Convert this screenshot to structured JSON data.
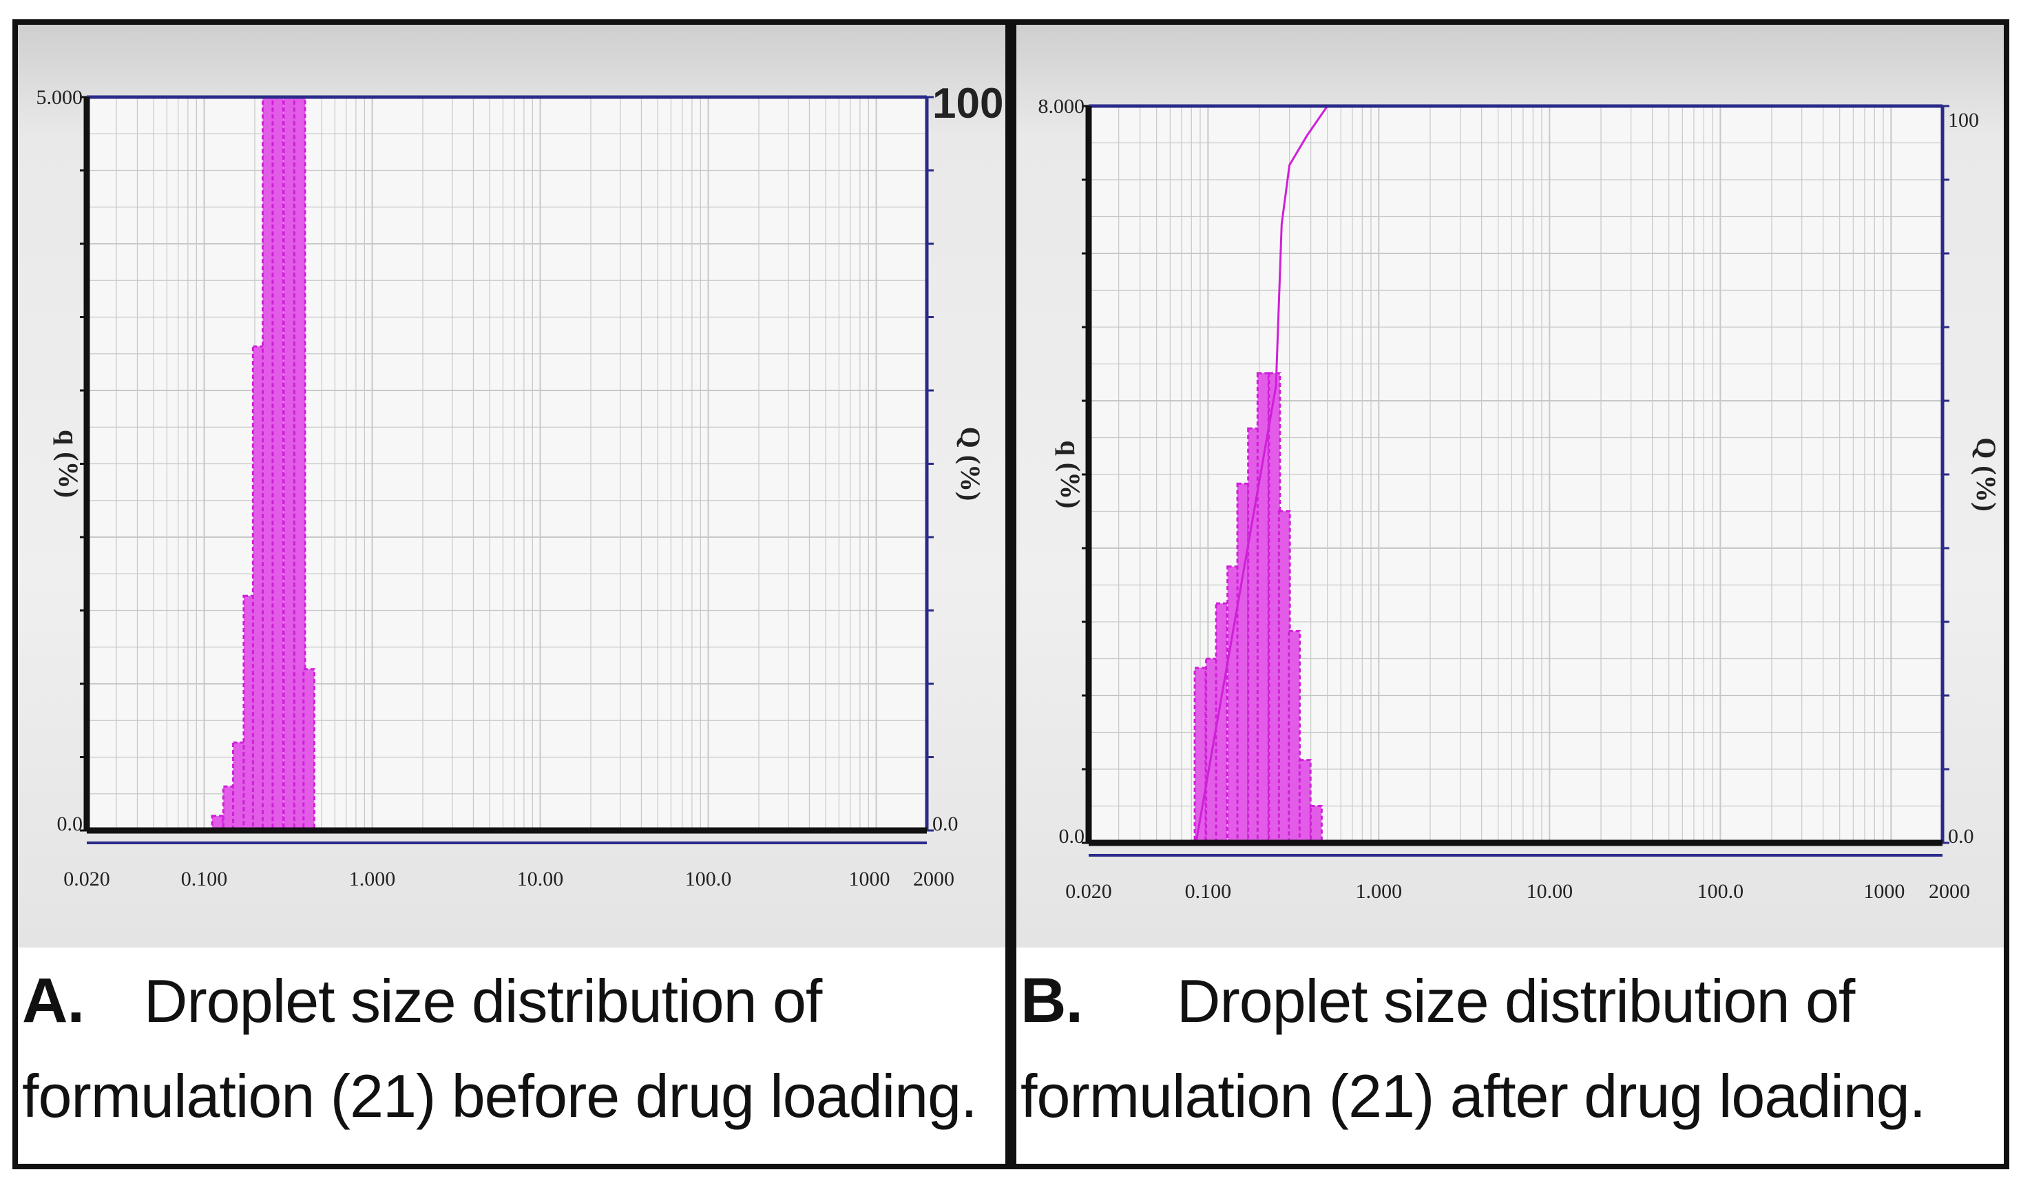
{
  "chart_data": [
    {
      "id": "A",
      "type": "bar",
      "x_scale": "log",
      "x_ticks": [
        "0.020",
        "0.100",
        "1.000",
        "10.00",
        "100.0",
        "1000",
        "2000"
      ],
      "x_tick_values": [
        0.02,
        0.1,
        1,
        10,
        100,
        1000,
        2000
      ],
      "xlim": [
        0.02,
        2000
      ],
      "y_left_top_label": "5.000",
      "y_left_bottom_label": "0.0",
      "y_left_range": [
        0,
        5
      ],
      "y_left_label": "q (%)",
      "y_right_top_label": "100",
      "y_right_bottom_label": "0.0",
      "y_right_range": [
        0,
        100
      ],
      "y_right_label": "Q (%)",
      "bars": [
        {
          "x": 0.12,
          "y": 0.1
        },
        {
          "x": 0.14,
          "y": 0.3
        },
        {
          "x": 0.16,
          "y": 0.6
        },
        {
          "x": 0.185,
          "y": 1.6
        },
        {
          "x": 0.21,
          "y": 3.3
        },
        {
          "x": 0.24,
          "y": 5.0
        },
        {
          "x": 0.275,
          "y": 5.0
        },
        {
          "x": 0.32,
          "y": 5.0
        },
        {
          "x": 0.37,
          "y": 5.0
        },
        {
          "x": 0.42,
          "y": 1.1
        }
      ],
      "cumulative_curve": false
    },
    {
      "id": "B",
      "type": "bar",
      "x_scale": "log",
      "x_ticks": [
        "0.020",
        "0.100",
        "1.000",
        "10.00",
        "100.0",
        "1000",
        "2000"
      ],
      "x_tick_values": [
        0.02,
        0.1,
        1,
        10,
        100,
        1000,
        2000
      ],
      "xlim": [
        0.02,
        2000
      ],
      "y_left_top_label": "8.000",
      "y_left_bottom_label": "0.0",
      "y_left_range": [
        0,
        8
      ],
      "y_left_label": "q (%)",
      "y_right_top_label": "100",
      "y_right_bottom_label": "0.0",
      "y_right_range": [
        0,
        100
      ],
      "y_right_label": "Q (%)",
      "bars": [
        {
          "x": 0.09,
          "y": 1.9
        },
        {
          "x": 0.105,
          "y": 2.0
        },
        {
          "x": 0.12,
          "y": 2.6
        },
        {
          "x": 0.14,
          "y": 3.0
        },
        {
          "x": 0.16,
          "y": 3.9
        },
        {
          "x": 0.185,
          "y": 4.5
        },
        {
          "x": 0.21,
          "y": 5.1
        },
        {
          "x": 0.245,
          "y": 5.1
        },
        {
          "x": 0.28,
          "y": 3.6
        },
        {
          "x": 0.32,
          "y": 2.3
        },
        {
          "x": 0.37,
          "y": 0.9
        },
        {
          "x": 0.43,
          "y": 0.4
        }
      ],
      "cumulative_curve": true,
      "cumulative": [
        {
          "x": 0.085,
          "y": 0
        },
        {
          "x": 0.25,
          "y": 62
        },
        {
          "x": 0.27,
          "y": 84
        },
        {
          "x": 0.3,
          "y": 92
        },
        {
          "x": 0.38,
          "y": 96
        },
        {
          "x": 0.5,
          "y": 100
        }
      ]
    }
  ],
  "captions": {
    "a_letter": "A.",
    "a_line1": "Droplet size distribution of",
    "a_line2": "formulation (21) before drug loading.",
    "b_letter": "B.",
    "b_line1": "Droplet size distribution of",
    "b_line2": "formulation (21) after drug loading."
  },
  "colors": {
    "bar": "#d01fd8",
    "bar_fill": "#e25ce8",
    "frame": "#111111",
    "grid": "#c8c8c8",
    "right_axis": "#2a2a8a"
  }
}
